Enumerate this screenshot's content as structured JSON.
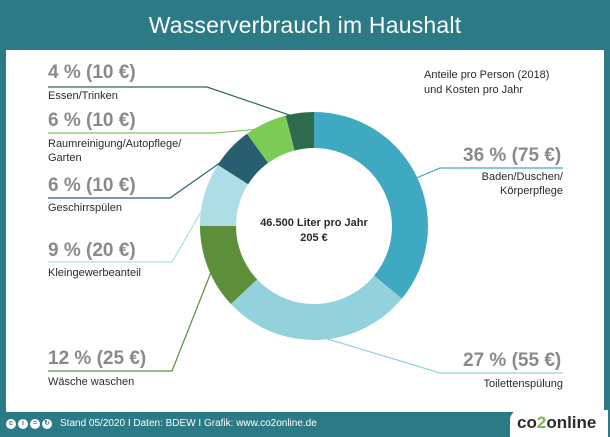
{
  "chart_data": {
    "type": "donut",
    "title": "Wasserverbrauch im Haushalt",
    "subtitle": "Anteile pro Person (2018) und Kosten pro Jahr",
    "center_label": [
      "46.500 Liter pro Jahr",
      "205 €"
    ],
    "slices": [
      {
        "category": "Baden/Duschen/ Körperpflege",
        "percent": 36,
        "cost_eur": 75,
        "label": "36 % (75 €)",
        "color": "#3fa9c1"
      },
      {
        "category": "Toilettenspülung",
        "percent": 27,
        "cost_eur": 55,
        "label": "27 % (55 €)",
        "color": "#93d2dd"
      },
      {
        "category": "Wäsche waschen",
        "percent": 12,
        "cost_eur": 25,
        "label": "12 % (25 €)",
        "color": "#5d8f3a"
      },
      {
        "category": "Kleingewerbeanteil",
        "percent": 9,
        "cost_eur": 20,
        "label": "9 % (20 €)",
        "color": "#aedde5"
      },
      {
        "category": "Geschirrspülen",
        "percent": 6,
        "cost_eur": 10,
        "label": "6 % (10 €)",
        "color": "#275f71"
      },
      {
        "category": "Raumreinigung/Autopflege/ Garten",
        "percent": 6,
        "cost_eur": 10,
        "label": "6 % (10 €)",
        "color": "#7ccb56"
      },
      {
        "category": "Essen/Trinken",
        "percent": 4,
        "cost_eur": 10,
        "label": "4 % (10 €)",
        "color": "#2e6b4e"
      }
    ]
  },
  "header": {
    "title": "Wasserverbrauch im Haushalt"
  },
  "note": {
    "line1": "Anteile pro Person (2018)",
    "line2": "und Kosten pro Jahr"
  },
  "center": {
    "line1": "46.500 Liter pro Jahr",
    "line2": "205 €"
  },
  "labels": {
    "s0": {
      "pct": "36 % (75 €)",
      "cat1": "Baden/Duschen/",
      "cat2": "Körperpflege"
    },
    "s1": {
      "pct": "27 % (55 €)",
      "cat1": "Toilettenspülung"
    },
    "s2": {
      "pct": "12 % (25 €)",
      "cat1": "Wäsche waschen"
    },
    "s3": {
      "pct": "9 % (20 €)",
      "cat1": "Kleingewerbeanteil"
    },
    "s4": {
      "pct": "6 % (10 €)",
      "cat1": "Geschirrspülen"
    },
    "s5": {
      "pct": "6 % (10 €)",
      "cat1": "Raumreinigung/Autopflege/",
      "cat2": "Garten"
    },
    "s6": {
      "pct": "4 % (10 €)",
      "cat1": "Essen/Trinken"
    }
  },
  "footer": {
    "cc_icons": [
      "cc",
      "by",
      "nd",
      "sa"
    ],
    "text": "Stand 05/2020  I  Daten: BDEW  I  Grafik: www.co2online.de",
    "brand_a": "co",
    "brand_b": "2",
    "brand_c": "online"
  }
}
